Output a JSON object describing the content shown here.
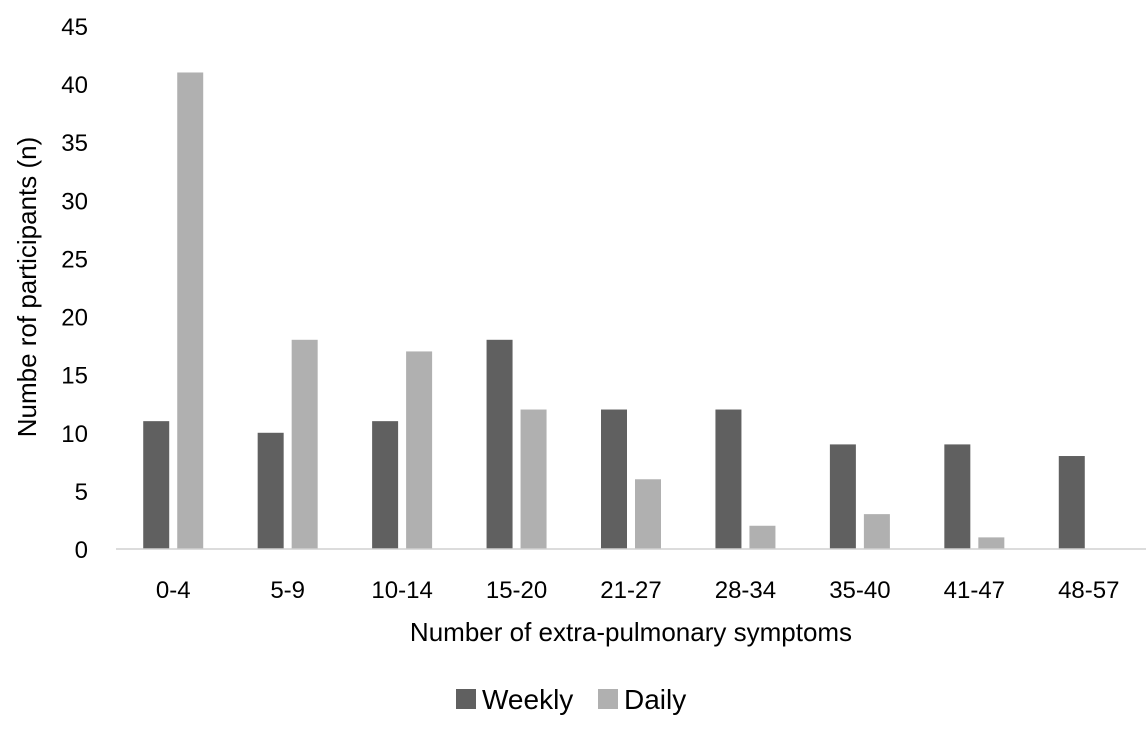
{
  "chart_data": {
    "type": "bar",
    "title": "",
    "xlabel": "Number of extra-pulmonary symptoms",
    "ylabel": "Numbe rof participants (n)",
    "categories": [
      "0-4",
      "5-9",
      "10-14",
      "15-20",
      "21-27",
      "28-34",
      "35-40",
      "41-47",
      "48-57"
    ],
    "series": [
      {
        "name": "Weekly",
        "color": "#606060",
        "values": [
          11,
          10,
          11,
          18,
          12,
          12,
          9,
          9,
          8
        ]
      },
      {
        "name": "Daily",
        "color": "#b0b0b0",
        "values": [
          41,
          18,
          17,
          12,
          6,
          2,
          3,
          1,
          0
        ]
      }
    ],
    "ylim": [
      0,
      45
    ],
    "yticks": [
      0,
      5,
      10,
      15,
      20,
      25,
      30,
      35,
      40,
      45
    ],
    "grid": false,
    "legend_position": "bottom"
  }
}
